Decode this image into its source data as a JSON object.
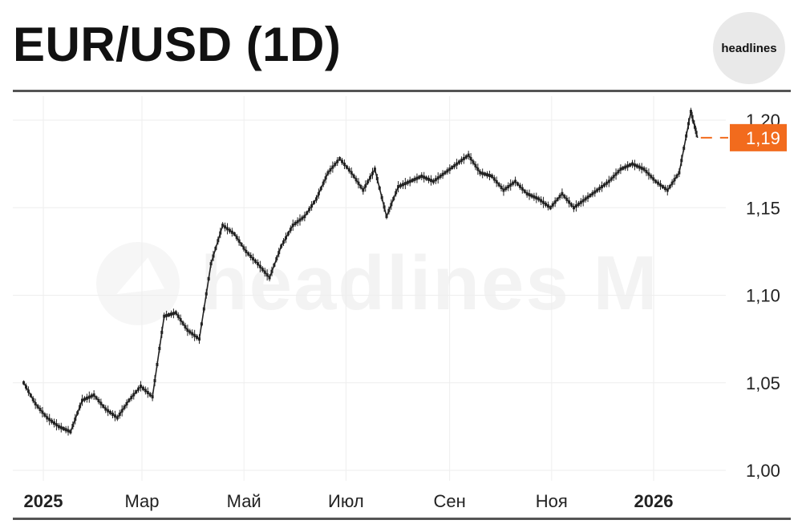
{
  "header": {
    "title": "EUR/USD (1D)",
    "logo_text": "headlines"
  },
  "watermark": {
    "text": "headlines M"
  },
  "colors": {
    "candle": "#222222",
    "grid": "#eeeeee",
    "rule": "#555555",
    "current_price": "#f26b1d"
  },
  "chart_data": {
    "type": "line",
    "title": "EUR/USD (1D)",
    "xlabel": "",
    "ylabel": "",
    "ylim": [
      0.995,
      1.215
    ],
    "y_ticks": [
      {
        "value": 1.0,
        "label": "1,00"
      },
      {
        "value": 1.05,
        "label": "1,05"
      },
      {
        "value": 1.1,
        "label": "1,10"
      },
      {
        "value": 1.15,
        "label": "1,15"
      },
      {
        "value": 1.2,
        "label": "1,20"
      }
    ],
    "x_ticks": [
      {
        "date": "2025-01-01",
        "label": "2025",
        "bold": true
      },
      {
        "date": "2025-03-01",
        "label": "Мар",
        "bold": false
      },
      {
        "date": "2025-05-01",
        "label": "Май",
        "bold": false
      },
      {
        "date": "2025-07-01",
        "label": "Июл",
        "bold": false
      },
      {
        "date": "2025-09-01",
        "label": "Сен",
        "bold": false
      },
      {
        "date": "2025-11-01",
        "label": "Ноя",
        "bold": false
      },
      {
        "date": "2026-01-01",
        "label": "2026",
        "bold": true
      }
    ],
    "current_price": {
      "value": 1.19,
      "label": "1,19"
    },
    "series": [
      {
        "x": [
          "2024-12-27",
          "2025-01-03",
          "2025-01-10",
          "2025-01-17",
          "2025-01-24",
          "2025-01-31",
          "2025-02-07",
          "2025-02-14",
          "2025-02-21",
          "2025-02-28",
          "2025-03-07",
          "2025-03-14",
          "2025-03-21",
          "2025-03-28",
          "2025-04-04",
          "2025-04-11",
          "2025-04-18",
          "2025-04-25",
          "2025-05-02",
          "2025-05-09",
          "2025-05-16",
          "2025-05-23",
          "2025-05-30",
          "2025-06-06",
          "2025-06-13",
          "2025-06-20",
          "2025-06-27",
          "2025-07-04",
          "2025-07-11",
          "2025-07-18",
          "2025-07-25",
          "2025-08-01",
          "2025-08-08",
          "2025-08-15",
          "2025-08-22",
          "2025-08-29",
          "2025-09-05",
          "2025-09-12",
          "2025-09-19",
          "2025-09-26",
          "2025-10-03",
          "2025-10-10",
          "2025-10-17",
          "2025-10-24",
          "2025-10-31",
          "2025-11-07",
          "2025-11-14",
          "2025-11-21",
          "2025-11-28",
          "2025-12-05",
          "2025-12-12",
          "2025-12-19",
          "2025-12-26",
          "2026-01-02",
          "2026-01-09",
          "2026-01-16",
          "2026-01-23",
          "2026-01-30",
          "2026-02-03"
        ],
        "values": [
          1.05,
          1.038,
          1.03,
          1.025,
          1.022,
          1.04,
          1.043,
          1.035,
          1.03,
          1.04,
          1.048,
          1.042,
          1.088,
          1.09,
          1.08,
          1.075,
          1.118,
          1.14,
          1.135,
          1.125,
          1.118,
          1.11,
          1.128,
          1.14,
          1.145,
          1.155,
          1.17,
          1.178,
          1.17,
          1.16,
          1.172,
          1.145,
          1.162,
          1.165,
          1.168,
          1.165,
          1.17,
          1.175,
          1.18,
          1.17,
          1.168,
          1.16,
          1.165,
          1.158,
          1.155,
          1.15,
          1.158,
          1.15,
          1.155,
          1.16,
          1.165,
          1.172,
          1.175,
          1.172,
          1.165,
          1.16,
          1.17,
          1.205,
          1.19
        ]
      }
    ]
  }
}
